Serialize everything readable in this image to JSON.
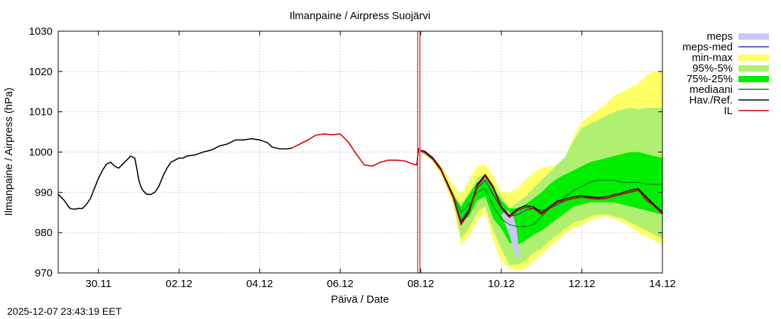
{
  "chart_data": {
    "type": "line",
    "title": "Ilmanpaine / Airpress Suojärvi",
    "xlabel": "Päivä / Date",
    "ylabel": "Ilmanpaine / Airpress (hPa)",
    "timestamp": "2025-12-07 23:43:19 EET",
    "x_axis_unit": "day (0 = 29.11 00:00)",
    "xlim": [
      0,
      15
    ],
    "ylim": [
      970,
      1030
    ],
    "x_ticks": [
      {
        "x": 1,
        "label": "30.11"
      },
      {
        "x": 3,
        "label": "02.12"
      },
      {
        "x": 5,
        "label": "04.12"
      },
      {
        "x": 7,
        "label": "06.12"
      },
      {
        "x": 9,
        "label": "08.12"
      },
      {
        "x": 11,
        "label": "10.12"
      },
      {
        "x": 13,
        "label": "12.12"
      },
      {
        "x": 15,
        "label": "14.12"
      }
    ],
    "y_ticks": [
      970,
      980,
      990,
      1000,
      1010,
      1020,
      1030
    ],
    "grid": true,
    "legend_position": "right, outside plot",
    "forecast_start_x": 8.95,
    "legend": [
      {
        "label": "meps",
        "color": "#c8c8f8",
        "kind": "box"
      },
      {
        "label": "meps-med",
        "color": "#3030a8",
        "kind": "line"
      },
      {
        "label": "min-max",
        "color": "#ffff66",
        "kind": "box"
      },
      {
        "label": "95%-5%",
        "color": "#b0f070",
        "kind": "box"
      },
      {
        "label": "75%-25%",
        "color": "#00ee00",
        "kind": "box"
      },
      {
        "label": "mediaani",
        "color": "#1a7a1a",
        "kind": "line"
      },
      {
        "label": "Hav./Ref.",
        "color": "#000000",
        "kind": "line"
      },
      {
        "label": "IL",
        "color": "#cc0000",
        "kind": "line"
      }
    ],
    "x_grid": [
      9,
      9.1,
      9.3,
      9.5,
      9.8,
      10.0,
      10.2,
      10.4,
      10.6,
      10.8,
      11.0,
      11.2,
      11.4,
      11.6,
      11.8,
      12.0,
      12.2,
      12.4,
      12.6,
      12.8,
      13.0,
      13.2,
      13.4,
      13.6,
      13.8,
      14.0,
      14.2,
      14.4,
      14.6,
      14.8,
      15.0
    ],
    "series": [
      {
        "name": "min-max",
        "color": "#ffff66",
        "lower": [
          1000,
          999.3,
          997.6,
          994.5,
          987,
          977,
          979,
          983,
          985,
          978,
          973,
          971,
          970.5,
          971,
          973,
          974.5,
          976.5,
          978,
          980,
          981,
          982,
          983,
          983.5,
          984,
          983.5,
          982.5,
          981.5,
          980,
          979,
          978,
          977
        ],
        "upper": [
          1000.5,
          1000,
          998.8,
          996.5,
          992,
          989.5,
          993,
          996.5,
          997,
          994,
          990,
          990,
          991,
          993,
          995,
          996,
          996.5,
          996.5,
          999,
          1004,
          1007.5,
          1009,
          1010.5,
          1012,
          1014,
          1015,
          1016,
          1017,
          1019,
          1020,
          1020
        ]
      },
      {
        "name": "95%-5%",
        "color": "#b0f070",
        "lower": [
          1000,
          999.4,
          997.9,
          995,
          988,
          978.5,
          981,
          985,
          986.5,
          980.5,
          976,
          972,
          972,
          973,
          975,
          976,
          978,
          979.5,
          981,
          982.5,
          983,
          984,
          984.5,
          984.5,
          984,
          983.5,
          982.5,
          981.5,
          980.5,
          979.5,
          978.5
        ],
        "upper": [
          1000.4,
          1000,
          998.6,
          996,
          990,
          987,
          990,
          993.5,
          994.5,
          992,
          989,
          986,
          987.5,
          989,
          991,
          993,
          995,
          997,
          999,
          1003,
          1006,
          1007,
          1008,
          1009,
          1010,
          1010.5,
          1011,
          1010.5,
          1011,
          1011,
          1011
        ]
      },
      {
        "name": "75%-25%",
        "color": "#00ee00",
        "lower": [
          1000.1,
          999.6,
          998.1,
          995.6,
          989.2,
          982.6,
          984,
          988,
          989,
          983.5,
          981,
          977.5,
          977,
          978,
          979.5,
          980.5,
          982,
          983.5,
          985,
          986.5,
          987,
          987.5,
          987.5,
          987.5,
          987.5,
          987,
          986.5,
          986,
          985.5,
          985,
          984.5
        ],
        "upper": [
          1000.3,
          999.9,
          998.5,
          996,
          989.2,
          986.5,
          989.5,
          992.5,
          993.5,
          991,
          988,
          986,
          986,
          987,
          988.5,
          990,
          992,
          993.5,
          994.5,
          995.5,
          996.5,
          997.5,
          998,
          998.5,
          999,
          999.5,
          1000,
          1000,
          999.5,
          999,
          998.5
        ]
      },
      {
        "name": "meps",
        "color": "#c8c8f8",
        "lower": [
          null,
          null,
          null,
          null,
          null,
          null,
          null,
          null,
          null,
          null,
          null,
          null,
          null,
          null,
          null,
          null,
          null,
          null,
          null,
          null,
          null,
          null,
          null,
          null,
          null,
          null,
          null,
          null,
          null,
          null,
          null
        ],
        "upper": [
          null,
          null,
          null,
          null,
          null,
          null,
          null,
          null,
          null,
          null,
          null,
          null,
          null,
          null,
          null,
          null,
          null,
          null,
          null,
          null,
          null,
          null,
          null,
          null,
          null,
          null,
          null,
          null,
          null,
          null,
          null
        ]
      },
      {
        "name": "mediaani",
        "color": "#1a7a1a",
        "values": [
          1000.2,
          999.8,
          998.3,
          995.8,
          989.5,
          985,
          987,
          990,
          991,
          986.5,
          983.5,
          982,
          981.5,
          981.5,
          982,
          984,
          986,
          987.5,
          989,
          990.5,
          991.5,
          992.5,
          993,
          993,
          993,
          992.5,
          992.5,
          992.5,
          992,
          992,
          992
        ]
      },
      {
        "name": "meps-med",
        "color": "#3030a8",
        "values": [
          1000.2,
          999.8,
          998.2,
          995.5,
          989,
          983,
          986,
          991,
          993,
          989.5,
          986,
          984,
          984.5,
          985.5,
          986,
          985.5,
          986,
          987,
          988,
          988.5,
          988.8,
          988.8,
          988.5,
          988.5,
          989,
          989.5,
          990,
          990.5,
          988,
          986.5,
          984.5
        ]
      },
      {
        "name": "IL",
        "color": "#cc0000",
        "values": [
          1000.5,
          999.8,
          998.2,
          995.5,
          988.8,
          982,
          985,
          991.5,
          994,
          991,
          986,
          983.8,
          985.5,
          986.3,
          986,
          984.5,
          986,
          987.5,
          988,
          988.5,
          988.8,
          988.5,
          988.3,
          988.5,
          989,
          989.5,
          990.2,
          990.5,
          988.5,
          986.5,
          984.7
        ]
      }
    ],
    "meps_plume": {
      "x": [
        11.0,
        11.15,
        11.3,
        11.38,
        11.42,
        11.45,
        11.4,
        11.3,
        11.2,
        11.1,
        11.0
      ],
      "y": [
        984.5,
        985.5,
        984,
        981,
        977,
        974,
        973.5,
        976,
        979.5,
        982,
        984.5
      ]
    },
    "observed": {
      "name": "Hav./Ref.",
      "color": "#000000",
      "x": [
        0,
        0.15,
        0.25,
        0.3,
        0.4,
        0.5,
        0.6,
        0.7,
        0.8,
        0.9,
        1.0,
        1.1,
        1.2,
        1.3,
        1.4,
        1.5,
        1.6,
        1.7,
        1.8,
        1.9,
        1.95,
        2.0,
        2.05,
        2.1,
        2.2,
        2.3,
        2.4,
        2.5,
        2.6,
        2.7,
        2.8,
        2.9,
        3.0,
        3.1,
        3.2,
        3.4,
        3.6,
        3.8,
        4.0,
        4.2,
        4.4,
        4.6,
        4.8,
        5.0,
        5.2,
        5.3,
        5.5,
        5.7,
        5.8
      ],
      "y": [
        989.5,
        988,
        986.5,
        986,
        985.8,
        986,
        986,
        987,
        988.5,
        991,
        993.5,
        995.5,
        997,
        997.5,
        996.5,
        996,
        997,
        998,
        999,
        998.5,
        996,
        993,
        991.5,
        990.5,
        989.5,
        989.5,
        990,
        991.5,
        994,
        996,
        997.5,
        998,
        998.5,
        998.5,
        999,
        999.3,
        1000,
        1000.5,
        1001.5,
        1002,
        1003,
        1003,
        1003.3,
        1003,
        1002.3,
        1001.3,
        1000.8,
        1000.8,
        1001
      ]
    },
    "il_history": {
      "x": [
        5.8,
        6.0,
        6.2,
        6.4,
        6.6,
        6.8,
        7.0,
        7.2,
        7.4,
        7.6,
        7.8,
        8.0,
        8.2,
        8.4,
        8.6,
        8.8,
        8.9,
        8.95
      ],
      "y": [
        1001,
        1002,
        1003,
        1004.2,
        1004.5,
        1004.3,
        1004.5,
        1002.5,
        999.5,
        996.8,
        996.5,
        997.5,
        998,
        998,
        997.8,
        997,
        996.8,
        1001
      ]
    }
  }
}
